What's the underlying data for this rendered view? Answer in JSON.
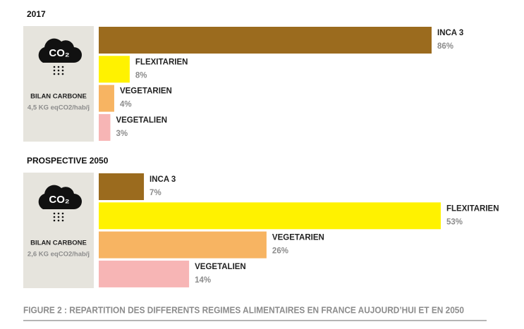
{
  "chart_data": [
    {
      "type": "bar",
      "title": "2017",
      "icon_label": "CO₂",
      "side_title": "BILAN CARBONE",
      "side_note": "4,5 KG eqCO2/hab/j",
      "categories": [
        "INCA 3",
        "FLEXITARIEN",
        "VEGETARIEN",
        "VEGETALIEN"
      ],
      "values": [
        86,
        8,
        4,
        3
      ],
      "value_labels": [
        "86%",
        "8%",
        "4%",
        "3%"
      ],
      "colors": [
        "#9b6b1e",
        "#fff200",
        "#f7b462",
        "#f7b5b5"
      ],
      "xlim": [
        0,
        86
      ]
    },
    {
      "type": "bar",
      "title": "PROSPECTIVE 2050",
      "icon_label": "CO₂",
      "side_title": "BILAN CARBONE",
      "side_note": "2,6 KG eqCO2/hab/j",
      "categories": [
        "INCA 3",
        "FLEXITARIEN",
        "VEGETARIEN",
        "VEGETALIEN"
      ],
      "values": [
        7,
        53,
        26,
        14
      ],
      "value_labels": [
        "7%",
        "53%",
        "26%",
        "14%"
      ],
      "colors": [
        "#9b6b1e",
        "#fff200",
        "#f7b462",
        "#f7b5b5"
      ],
      "xlim": [
        0,
        53
      ]
    }
  ],
  "caption": "FIGURE 2 : REPARTITION DES DIFFERENTS REGIMES ALIMENTAIRES EN FRANCE AUJOURD’HUI ET EN 2050"
}
